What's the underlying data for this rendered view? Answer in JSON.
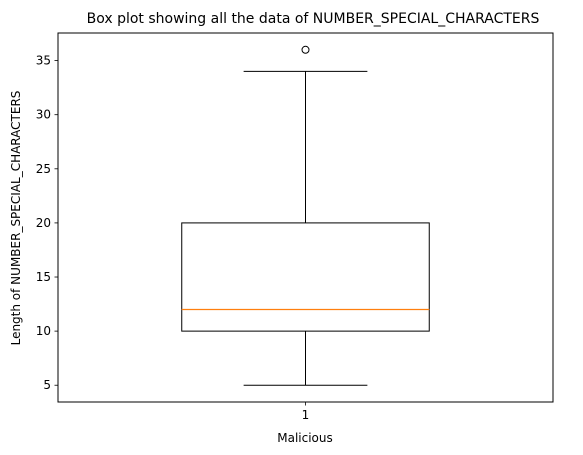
{
  "chart_data": {
    "type": "box",
    "title": "Box plot showing all the data of NUMBER_SPECIAL_CHARACTERS",
    "xlabel": "Malicious",
    "ylabel": "Length of NUMBER_SPECIAL_CHARACTERS",
    "categories": [
      "1"
    ],
    "ylim": [
      3.45,
      37.55
    ],
    "yticks": [
      5,
      10,
      15,
      20,
      25,
      30,
      35
    ],
    "grid": false,
    "boxes": [
      {
        "category": "1",
        "whisker_low": 5,
        "q1": 10,
        "median": 12,
        "q3": 20,
        "whisker_high": 34,
        "outliers": [
          36
        ]
      }
    ],
    "colors": {
      "box": "#000000",
      "median": "#ff7f0e",
      "outlier": "#000000"
    }
  }
}
